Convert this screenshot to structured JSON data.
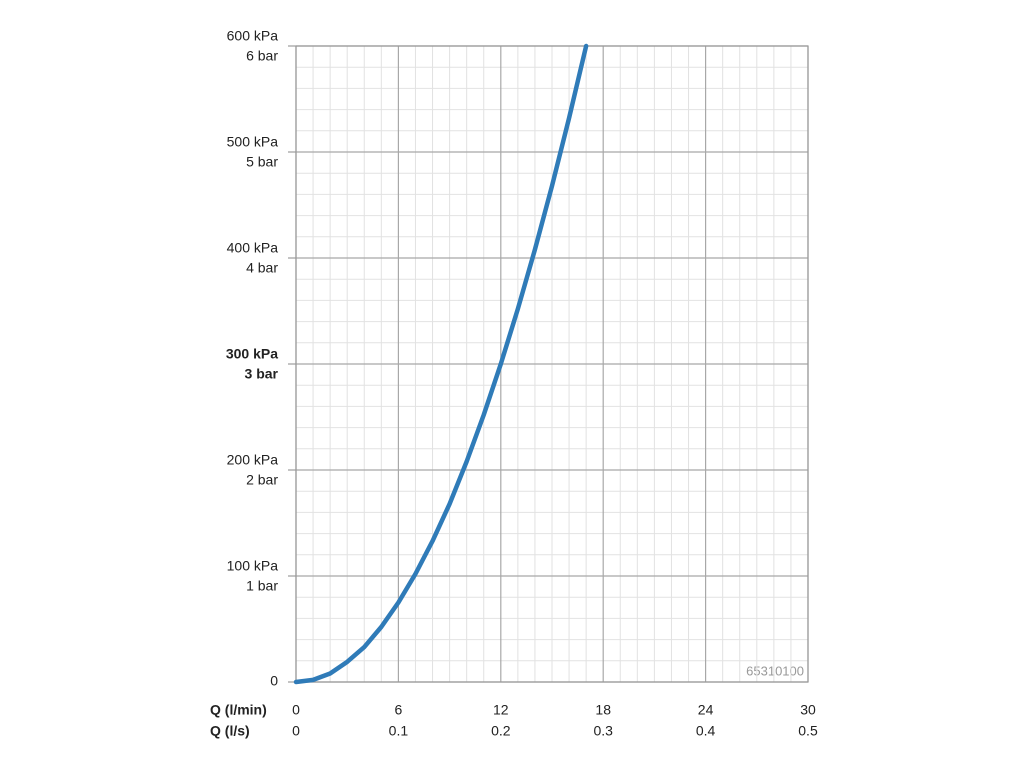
{
  "chart_data": {
    "type": "line",
    "x": [
      0,
      1,
      2,
      3,
      4,
      5,
      6,
      7,
      8,
      9,
      10,
      11,
      12,
      13,
      14,
      15,
      16,
      17
    ],
    "series": [
      {
        "color": "#2f7bb8",
        "values": [
          0,
          2,
          8,
          19,
          33,
          52,
          75,
          102,
          133,
          168,
          208,
          252,
          300,
          352,
          408,
          468,
          532,
          600
        ]
      }
    ],
    "xlim": [
      0,
      30
    ],
    "xticks": [
      0,
      6,
      12,
      18,
      24,
      30
    ],
    "xlabel": "Q (l/min)",
    "x2lim": [
      0,
      0.5
    ],
    "x2ticks": [
      0,
      0.1,
      0.2,
      0.3,
      0.4,
      0.5
    ],
    "x2label": "Q (l/s)",
    "ylim": [
      0,
      600
    ],
    "yticks": [
      0,
      {
        "value": 100,
        "label": "100 kPa"
      },
      {
        "value": 200,
        "label": "200 kPa"
      },
      {
        "value": 300,
        "label": "300 kPa"
      },
      {
        "value": 400,
        "label": "400 kPa"
      },
      {
        "value": 500,
        "label": "500 kPa"
      },
      {
        "value": 600,
        "label": "600 kPa"
      }
    ],
    "yticks_secondary": [
      {
        "value": 100,
        "label": "1 bar"
      },
      {
        "value": 200,
        "label": "2 bar"
      },
      {
        "value": 300,
        "label": "3 bar"
      },
      {
        "value": 400,
        "label": "4 bar"
      },
      {
        "value": 500,
        "label": "5 bar"
      },
      {
        "value": 600,
        "label": "6 bar"
      }
    ],
    "bold_ytick": 300,
    "grid": true,
    "minor_grid": true,
    "annotation": "65310100"
  }
}
